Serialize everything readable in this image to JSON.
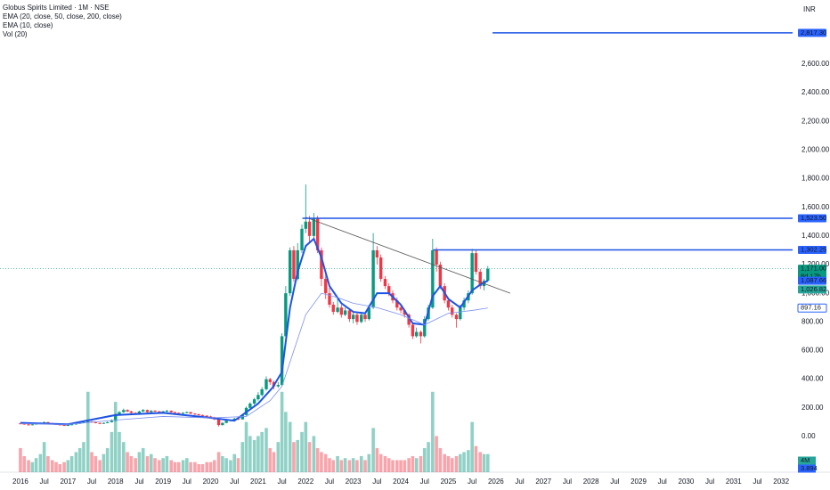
{
  "header": {
    "title": "Globus Spirits Limited · 1M · NSE",
    "indicators": [
      "EMA (20, close, 50, close, 200, close)",
      "EMA (10, close)",
      "Vol (20)"
    ],
    "currency": "INR"
  },
  "chart_data": {
    "type": "candlestick",
    "xlim": [
      2015.57,
      2032.24
    ],
    "ylim": [
      -249,
      3047
    ],
    "y2lim": [
      0,
      23.5
    ],
    "xticks": [
      {
        "value": 2016,
        "label": "2016"
      },
      {
        "value": 2016.5,
        "label": "Jul"
      },
      {
        "value": 2017,
        "label": "2017"
      },
      {
        "value": 2017.5,
        "label": "Jul"
      },
      {
        "value": 2018,
        "label": "2018"
      },
      {
        "value": 2018.5,
        "label": "Jul"
      },
      {
        "value": 2019,
        "label": "2019"
      },
      {
        "value": 2019.5,
        "label": "Jul"
      },
      {
        "value": 2020,
        "label": "2020"
      },
      {
        "value": 2020.5,
        "label": "Jul"
      },
      {
        "value": 2021,
        "label": "2021"
      },
      {
        "value": 2021.5,
        "label": "Jul"
      },
      {
        "value": 2022,
        "label": "2022"
      },
      {
        "value": 2022.5,
        "label": "Jul"
      },
      {
        "value": 2023,
        "label": "2023"
      },
      {
        "value": 2023.5,
        "label": "Jul"
      },
      {
        "value": 2024,
        "label": "2024"
      },
      {
        "value": 2024.5,
        "label": "Jul"
      },
      {
        "value": 2025,
        "label": "2025"
      },
      {
        "value": 2025.5,
        "label": "Jul"
      },
      {
        "value": 2026,
        "label": "2026"
      },
      {
        "value": 2026.5,
        "label": "Jul"
      },
      {
        "value": 2027,
        "label": "2027"
      },
      {
        "value": 2027.5,
        "label": "Jul"
      },
      {
        "value": 2028,
        "label": "2028"
      },
      {
        "value": 2028.5,
        "label": "Jul"
      },
      {
        "value": 2029,
        "label": "2029"
      },
      {
        "value": 2029.5,
        "label": "Jul"
      },
      {
        "value": 2030,
        "label": "2030"
      },
      {
        "value": 2030.5,
        "label": "Jul"
      },
      {
        "value": 2031,
        "label": "2031"
      },
      {
        "value": 2031.5,
        "label": "Jul"
      },
      {
        "value": 2032,
        "label": "2032"
      }
    ],
    "yticks": [
      {
        "value": 0,
        "label": "0.00"
      },
      {
        "value": 200,
        "label": "200.00"
      },
      {
        "value": 400,
        "label": "400.00"
      },
      {
        "value": 600,
        "label": "600.00"
      },
      {
        "value": 800,
        "label": "800.00"
      },
      {
        "value": 1000,
        "label": "1,000.00"
      },
      {
        "value": 1200,
        "label": "1,200.00"
      },
      {
        "value": 1400,
        "label": "1,400.00"
      },
      {
        "value": 1600,
        "label": "1,600.00"
      },
      {
        "value": 1800,
        "label": "1,800.00"
      },
      {
        "value": 2000,
        "label": "2,000.00"
      },
      {
        "value": 2200,
        "label": "2,200.00"
      },
      {
        "value": 2400,
        "label": "2,400.00"
      },
      {
        "value": 2600,
        "label": "2,600.00"
      }
    ],
    "up_color": "#089981",
    "down_color": "#f23645",
    "x": [
      2016,
      2016.08,
      2016.17,
      2016.25,
      2016.33,
      2016.42,
      2016.5,
      2016.58,
      2016.67,
      2016.75,
      2016.83,
      2016.92,
      2017,
      2017.08,
      2017.17,
      2017.25,
      2017.33,
      2017.42,
      2017.5,
      2017.58,
      2017.67,
      2017.75,
      2017.83,
      2017.92,
      2018,
      2018.08,
      2018.17,
      2018.25,
      2018.33,
      2018.42,
      2018.5,
      2018.58,
      2018.67,
      2018.75,
      2018.83,
      2018.92,
      2019,
      2019.08,
      2019.17,
      2019.25,
      2019.33,
      2019.42,
      2019.5,
      2019.58,
      2019.67,
      2019.75,
      2019.83,
      2019.92,
      2020,
      2020.08,
      2020.17,
      2020.25,
      2020.33,
      2020.42,
      2020.5,
      2020.58,
      2020.67,
      2020.75,
      2020.83,
      2020.92,
      2021,
      2021.08,
      2021.17,
      2021.25,
      2021.33,
      2021.42,
      2021.5,
      2021.58,
      2021.67,
      2021.75,
      2021.83,
      2021.92,
      2022,
      2022.08,
      2022.17,
      2022.25,
      2022.33,
      2022.42,
      2022.5,
      2022.58,
      2022.67,
      2022.75,
      2022.83,
      2022.92,
      2023,
      2023.08,
      2023.17,
      2023.25,
      2023.33,
      2023.42,
      2023.5,
      2023.58,
      2023.67,
      2023.75,
      2023.83,
      2023.92,
      2024,
      2024.08,
      2024.17,
      2024.25,
      2024.33,
      2024.42,
      2024.5,
      2024.58,
      2024.67,
      2024.75,
      2024.83,
      2024.92,
      2025,
      2025.08,
      2025.17,
      2025.25,
      2025.33,
      2025.42,
      2025.5,
      2025.58,
      2025.67,
      2025.75,
      2025.83
    ],
    "ohlc": [
      [
        92,
        98,
        86,
        90
      ],
      [
        90,
        93,
        82,
        85
      ],
      [
        85,
        88,
        76,
        80
      ],
      [
        80,
        88,
        78,
        85
      ],
      [
        85,
        94,
        83,
        90
      ],
      [
        90,
        98,
        88,
        95
      ],
      [
        95,
        105,
        92,
        100
      ],
      [
        100,
        102,
        88,
        92
      ],
      [
        92,
        95,
        85,
        88
      ],
      [
        88,
        92,
        82,
        85
      ],
      [
        85,
        88,
        76,
        80
      ],
      [
        80,
        83,
        74,
        78
      ],
      [
        78,
        84,
        75,
        80
      ],
      [
        80,
        88,
        78,
        85
      ],
      [
        85,
        93,
        83,
        90
      ],
      [
        90,
        98,
        88,
        95
      ],
      [
        95,
        104,
        92,
        100
      ],
      [
        100,
        110,
        98,
        105
      ],
      [
        105,
        108,
        96,
        100
      ],
      [
        100,
        102,
        92,
        95
      ],
      [
        95,
        97,
        86,
        90
      ],
      [
        90,
        98,
        88,
        95
      ],
      [
        95,
        104,
        92,
        100
      ],
      [
        100,
        120,
        98,
        110
      ],
      [
        110,
        160,
        105,
        150
      ],
      [
        150,
        178,
        145,
        170
      ],
      [
        170,
        195,
        165,
        185
      ],
      [
        185,
        190,
        170,
        175
      ],
      [
        175,
        180,
        160,
        165
      ],
      [
        165,
        170,
        155,
        160
      ],
      [
        160,
        180,
        158,
        175
      ],
      [
        175,
        192,
        170,
        185
      ],
      [
        185,
        188,
        165,
        170
      ],
      [
        170,
        185,
        166,
        180
      ],
      [
        180,
        184,
        170,
        175
      ],
      [
        175,
        180,
        165,
        170
      ],
      [
        170,
        180,
        166,
        175
      ],
      [
        175,
        186,
        170,
        180
      ],
      [
        180,
        183,
        165,
        170
      ],
      [
        170,
        174,
        160,
        165
      ],
      [
        165,
        168,
        155,
        160
      ],
      [
        160,
        170,
        157,
        165
      ],
      [
        165,
        175,
        162,
        170
      ],
      [
        170,
        172,
        156,
        160
      ],
      [
        160,
        163,
        150,
        155
      ],
      [
        155,
        158,
        146,
        150
      ],
      [
        150,
        153,
        141,
        145
      ],
      [
        145,
        150,
        136,
        140
      ],
      [
        140,
        145,
        130,
        135
      ],
      [
        135,
        138,
        115,
        120
      ],
      [
        120,
        123,
        70,
        80
      ],
      [
        80,
        100,
        76,
        95
      ],
      [
        95,
        115,
        92,
        110
      ],
      [
        110,
        120,
        105,
        115
      ],
      [
        115,
        130,
        110,
        125
      ],
      [
        125,
        132,
        115,
        120
      ],
      [
        120,
        158,
        118,
        150
      ],
      [
        150,
        210,
        145,
        200
      ],
      [
        200,
        240,
        190,
        230
      ],
      [
        230,
        270,
        220,
        260
      ],
      [
        260,
        310,
        250,
        290
      ],
      [
        290,
        345,
        280,
        330
      ],
      [
        330,
        420,
        320,
        400
      ],
      [
        400,
        410,
        360,
        380
      ],
      [
        380,
        390,
        330,
        350
      ],
      [
        350,
        380,
        340,
        360
      ],
      [
        360,
        720,
        355,
        700
      ],
      [
        700,
        1050,
        690,
        1000
      ],
      [
        1000,
        1320,
        980,
        1300
      ],
      [
        1300,
        1330,
        1080,
        1100
      ],
      [
        1100,
        1350,
        1090,
        1300
      ],
      [
        1300,
        1480,
        1280,
        1450
      ],
      [
        1450,
        1760,
        1420,
        1500
      ],
      [
        1500,
        1540,
        1350,
        1400
      ],
      [
        1400,
        1560,
        1380,
        1520
      ],
      [
        1520,
        1540,
        1280,
        1300
      ],
      [
        1300,
        1320,
        1050,
        1100
      ],
      [
        1100,
        1150,
        960,
        1000
      ],
      [
        1000,
        1040,
        900,
        920
      ],
      [
        920,
        940,
        850,
        870
      ],
      [
        870,
        960,
        860,
        900
      ],
      [
        900,
        920,
        830,
        850
      ],
      [
        850,
        900,
        840,
        880
      ],
      [
        880,
        890,
        800,
        820
      ],
      [
        820,
        870,
        790,
        850
      ],
      [
        850,
        860,
        780,
        800
      ],
      [
        800,
        870,
        790,
        850
      ],
      [
        850,
        860,
        800,
        820
      ],
      [
        820,
        920,
        810,
        900
      ],
      [
        900,
        1420,
        890,
        1300
      ],
      [
        1300,
        1330,
        1200,
        1250
      ],
      [
        1250,
        1270,
        1080,
        1100
      ],
      [
        1100,
        1120,
        1030,
        1050
      ],
      [
        1050,
        1070,
        980,
        1000
      ],
      [
        1000,
        1020,
        930,
        950
      ],
      [
        950,
        970,
        880,
        900
      ],
      [
        900,
        920,
        860,
        880
      ],
      [
        880,
        890,
        830,
        850
      ],
      [
        850,
        860,
        760,
        780
      ],
      [
        780,
        790,
        680,
        700
      ],
      [
        700,
        760,
        690,
        730
      ],
      [
        730,
        740,
        650,
        700
      ],
      [
        700,
        840,
        690,
        820
      ],
      [
        820,
        920,
        810,
        900
      ],
      [
        900,
        1380,
        890,
        1300
      ],
      [
        1300,
        1320,
        1150,
        1200
      ],
      [
        1200,
        1220,
        1030,
        1050
      ],
      [
        1050,
        1070,
        930,
        950
      ],
      [
        950,
        970,
        880,
        900
      ],
      [
        900,
        920,
        830,
        850
      ],
      [
        850,
        860,
        760,
        820
      ],
      [
        820,
        920,
        810,
        900
      ],
      [
        900,
        970,
        880,
        950
      ],
      [
        950,
        1020,
        930,
        1000
      ],
      [
        1000,
        1310,
        990,
        1280
      ],
      [
        1280,
        1300,
        1130,
        1150
      ],
      [
        1150,
        1170,
        1030,
        1050
      ],
      [
        1050,
        1100,
        1020,
        1087
      ],
      [
        1087,
        1190,
        1080,
        1171
      ]
    ],
    "volume": [
      1.2,
      0.8,
      0.6,
      0.5,
      0.7,
      0.9,
      1.5,
      0.8,
      0.6,
      0.5,
      0.4,
      0.5,
      0.6,
      0.8,
      1.0,
      1.2,
      1.5,
      4.0,
      1.0,
      0.8,
      0.6,
      0.9,
      1.2,
      2.0,
      3.5,
      2.0,
      1.5,
      1.0,
      0.8,
      0.7,
      1.0,
      1.2,
      0.8,
      0.9,
      0.7,
      0.6,
      0.7,
      0.8,
      0.6,
      0.5,
      0.5,
      0.6,
      0.7,
      0.5,
      0.5,
      0.4,
      0.4,
      0.5,
      0.5,
      0.6,
      1.0,
      0.8,
      0.7,
      0.6,
      0.9,
      0.7,
      1.5,
      2.5,
      1.8,
      1.6,
      1.8,
      2.0,
      2.2,
      1.2,
      1.0,
      1.5,
      4.0,
      3.0,
      2.5,
      1.5,
      1.6,
      2.0,
      2.5,
      1.5,
      1.8,
      1.2,
      1.0,
      0.9,
      0.7,
      0.6,
      0.8,
      0.6,
      0.7,
      0.6,
      0.7,
      0.6,
      0.8,
      0.6,
      0.9,
      2.2,
      1.2,
      0.9,
      0.8,
      0.7,
      0.6,
      0.6,
      0.6,
      0.6,
      0.7,
      0.8,
      0.7,
      0.8,
      1.2,
      1.5,
      4.0,
      1.8,
      1.2,
      0.9,
      0.8,
      0.7,
      0.8,
      0.9,
      1.0,
      1.1,
      2.5,
      1.3,
      1.0,
      0.9,
      0.9
    ],
    "lines": [
      {
        "color": "#1e53e5",
        "width": 2,
        "x": [
          2016,
          2017,
          2018,
          2019,
          2020,
          2020.5,
          2021,
          2021.3,
          2021.5,
          2021.67,
          2021.83,
          2022,
          2022.17,
          2022.33,
          2022.5,
          2022.75,
          2023,
          2023.25,
          2023.5,
          2023.75,
          2024,
          2024.25,
          2024.5,
          2024.67,
          2024.83,
          2025,
          2025.25,
          2025.5,
          2025.67,
          2025.83
        ],
        "values": [
          95,
          85,
          150,
          165,
          130,
          110,
          230,
          340,
          450,
          900,
          1150,
          1330,
          1380,
          1250,
          1050,
          930,
          870,
          860,
          1000,
          1000,
          920,
          790,
          780,
          980,
          1050,
          960,
          900,
          1020,
          1060,
          1088
        ]
      },
      {
        "color": "#7b8ff0",
        "width": 0.8,
        "x": [
          2016,
          2017,
          2018,
          2019,
          2020,
          2020.75,
          2021.25,
          2021.5,
          2021.75,
          2022,
          2022.33,
          2022.67,
          2023,
          2023.5,
          2024,
          2024.5,
          2024.75,
          2025,
          2025.5,
          2025.83
        ],
        "values": [
          90,
          85,
          115,
          140,
          130,
          140,
          250,
          350,
          600,
          850,
          1000,
          970,
          930,
          900,
          850,
          780,
          820,
          860,
          880,
          897
        ]
      }
    ],
    "trendline": {
      "color": "#555",
      "x": [
        2022,
        2026.3
      ],
      "values": [
        1530,
        1000
      ]
    },
    "levels": [
      {
        "value": 2817.3,
        "from": 2025.93,
        "color": "#1e53e5"
      },
      {
        "value": 1523.5,
        "from": 2021.93,
        "color": "#1e53e5"
      },
      {
        "value": 1302.25,
        "from": 2024.68,
        "color": "#1e53e5"
      }
    ],
    "price_tags": [
      {
        "value": 2817.3,
        "label": "2,817.30",
        "color": "#2962ff"
      },
      {
        "value": 1523.5,
        "label": "1,523.50",
        "color": "#2962ff"
      },
      {
        "value": 1302.25,
        "label": "1,302.25",
        "color": "#2962ff"
      },
      {
        "value": 1171,
        "label": "1,171.00",
        "color": "#089981",
        "note": "8d 17h"
      },
      {
        "value": 1087.66,
        "label": "1,087.66",
        "color": "#2962ff"
      },
      {
        "value": 1026.82,
        "label": "1,026.82",
        "color": "#26a69a"
      },
      {
        "value": 897.16,
        "label": "897.16",
        "color": "#ffffff"
      }
    ],
    "current_price": 1171,
    "volume_tags": [
      "4M",
      "3.894"
    ]
  }
}
